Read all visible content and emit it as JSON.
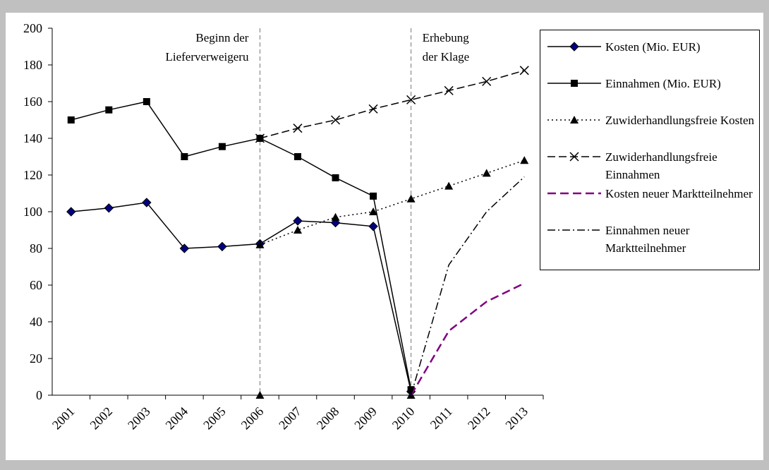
{
  "chart_data": {
    "type": "line",
    "categories": [
      "2001",
      "2002",
      "2003",
      "2004",
      "2005",
      "2006",
      "2007",
      "2008",
      "2009",
      "2010",
      "2011",
      "2012",
      "2013"
    ],
    "ylim": [
      0,
      200
    ],
    "yticks": [
      0,
      20,
      40,
      60,
      80,
      100,
      120,
      140,
      160,
      180,
      200
    ],
    "legend": "right",
    "series": [
      {
        "name": "Kosten (Mio. EUR)",
        "color": "#000000",
        "marker_color": "#000080",
        "dash": "solid",
        "marker": "diamond",
        "values": [
          100,
          102,
          105,
          80,
          81,
          82.5,
          95,
          94,
          92,
          2,
          null,
          null,
          null
        ]
      },
      {
        "name": "Einnahmen (Mio. EUR)",
        "color": "#000000",
        "marker_color": "#000000",
        "dash": "solid",
        "marker": "square",
        "values": [
          150,
          155.5,
          160,
          130,
          135.5,
          140,
          130,
          118.5,
          108.5,
          3,
          null,
          null,
          null
        ]
      },
      {
        "name": "Zuwiderhandlungsfreie Kosten",
        "color": "#000000",
        "marker_color": "#000000",
        "dash": "dotted",
        "marker": "triangle",
        "values": [
          null,
          null,
          null,
          null,
          null,
          82,
          90,
          97,
          100,
          107,
          114,
          121,
          128
        ]
      },
      {
        "name": "Zuwiderhandlungsfreie Einnahmen",
        "color": "#000000",
        "marker_color": "#000000",
        "dash": "dashed",
        "marker": "x",
        "values": [
          null,
          null,
          null,
          null,
          null,
          140,
          145.5,
          150,
          156,
          161,
          166,
          171,
          177
        ]
      },
      {
        "name": "Kosten neuer Marktteilnehmer",
        "color": "#800080",
        "marker_color": "#800080",
        "dash": "longdash",
        "marker": "none",
        "values": [
          null,
          null,
          null,
          null,
          null,
          null,
          null,
          null,
          null,
          0,
          35,
          51,
          61
        ]
      },
      {
        "name": "Einnahmen neuer Marktteilnehmer",
        "color": "#000000",
        "marker_color": "#000000",
        "dash": "dashdot",
        "marker": "none",
        "values": [
          null,
          null,
          null,
          null,
          null,
          null,
          null,
          null,
          null,
          0,
          71,
          100,
          119
        ]
      }
    ],
    "annotations": [
      {
        "category": "2006",
        "lines": [
          "Beginn der",
          "Lieferverweigeru"
        ],
        "side": "left"
      },
      {
        "category": "2010",
        "lines": [
          "Erhebung",
          "der Klage"
        ],
        "side": "right"
      }
    ]
  }
}
